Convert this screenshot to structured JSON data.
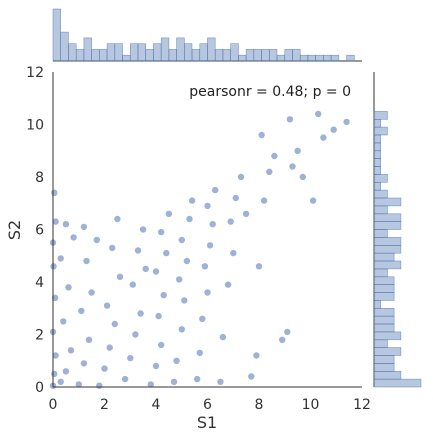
{
  "chart_data": {
    "type": "scatter",
    "title": "",
    "xlabel": "S1",
    "ylabel": "S2",
    "xlim": [
      0,
      12
    ],
    "ylim": [
      0,
      12
    ],
    "xticks": [
      "0",
      "2",
      "4",
      "6",
      "8",
      "10",
      "12"
    ],
    "yticks": [
      "0",
      "2",
      "4",
      "6",
      "8",
      "10",
      "12"
    ],
    "annotation": "pearsonr = 0.48; p = 0",
    "grid": false,
    "marginals": "histograms on top and right",
    "color": "#4c72b0",
    "points": [
      [
        0.0,
        0.05
      ],
      [
        0.05,
        0.5
      ],
      [
        0.1,
        1.2
      ],
      [
        0.0,
        2.1
      ],
      [
        0.08,
        3.4
      ],
      [
        0.02,
        4.6
      ],
      [
        0.0,
        5.5
      ],
      [
        0.1,
        6.3
      ],
      [
        0.05,
        7.4
      ],
      [
        0.3,
        0.2
      ],
      [
        0.5,
        0.6
      ],
      [
        0.7,
        1.4
      ],
      [
        0.4,
        2.5
      ],
      [
        0.6,
        3.8
      ],
      [
        0.3,
        4.9
      ],
      [
        0.8,
        5.7
      ],
      [
        0.5,
        6.2
      ],
      [
        1.0,
        0.1
      ],
      [
        1.2,
        0.9
      ],
      [
        1.4,
        1.8
      ],
      [
        1.1,
        2.9
      ],
      [
        1.5,
        3.6
      ],
      [
        1.3,
        4.8
      ],
      [
        1.7,
        5.6
      ],
      [
        1.2,
        6.1
      ],
      [
        1.8,
        0.05
      ],
      [
        2.0,
        0.7
      ],
      [
        2.2,
        1.5
      ],
      [
        2.4,
        2.4
      ],
      [
        2.1,
        3.1
      ],
      [
        2.6,
        4.2
      ],
      [
        2.3,
        5.3
      ],
      [
        2.5,
        6.4
      ],
      [
        2.8,
        0.3
      ],
      [
        3.0,
        1.1
      ],
      [
        3.2,
        2.0
      ],
      [
        3.4,
        2.8
      ],
      [
        3.1,
        3.9
      ],
      [
        3.6,
        4.5
      ],
      [
        3.3,
        5.2
      ],
      [
        3.5,
        6.0
      ],
      [
        3.8,
        0.1
      ],
      [
        4.0,
        0.8
      ],
      [
        4.2,
        1.6
      ],
      [
        4.1,
        2.7
      ],
      [
        4.3,
        3.5
      ],
      [
        4.0,
        4.4
      ],
      [
        4.4,
        5.1
      ],
      [
        4.2,
        5.9
      ],
      [
        4.5,
        6.6
      ],
      [
        4.7,
        0.2
      ],
      [
        4.8,
        1.0
      ],
      [
        5.0,
        2.2
      ],
      [
        5.1,
        3.3
      ],
      [
        4.9,
        4.1
      ],
      [
        5.2,
        4.8
      ],
      [
        5.0,
        5.6
      ],
      [
        5.3,
        6.4
      ],
      [
        5.4,
        7.1
      ],
      [
        5.6,
        0.3
      ],
      [
        5.7,
        1.3
      ],
      [
        5.8,
        2.6
      ],
      [
        6.0,
        3.6
      ],
      [
        5.9,
        4.6
      ],
      [
        6.1,
        5.4
      ],
      [
        6.2,
        6.2
      ],
      [
        6.0,
        6.9
      ],
      [
        6.3,
        7.5
      ],
      [
        6.5,
        0.2
      ],
      [
        6.6,
        1.9
      ],
      [
        6.8,
        3.9
      ],
      [
        7.0,
        5.1
      ],
      [
        6.9,
        6.3
      ],
      [
        7.1,
        7.2
      ],
      [
        7.3,
        8.0
      ],
      [
        7.5,
        6.6
      ],
      [
        7.7,
        0.4
      ],
      [
        7.9,
        1.2
      ],
      [
        8.0,
        4.6
      ],
      [
        8.2,
        7.1
      ],
      [
        8.4,
        8.2
      ],
      [
        8.1,
        9.6
      ],
      [
        8.6,
        8.8
      ],
      [
        8.9,
        1.8
      ],
      [
        9.1,
        2.1
      ],
      [
        9.3,
        8.4
      ],
      [
        9.5,
        9.0
      ],
      [
        9.2,
        10.2
      ],
      [
        9.7,
        8.0
      ],
      [
        10.1,
        7.1
      ],
      [
        10.3,
        10.4
      ],
      [
        10.5,
        9.5
      ],
      [
        10.9,
        9.8
      ],
      [
        11.4,
        10.1
      ]
    ]
  }
}
